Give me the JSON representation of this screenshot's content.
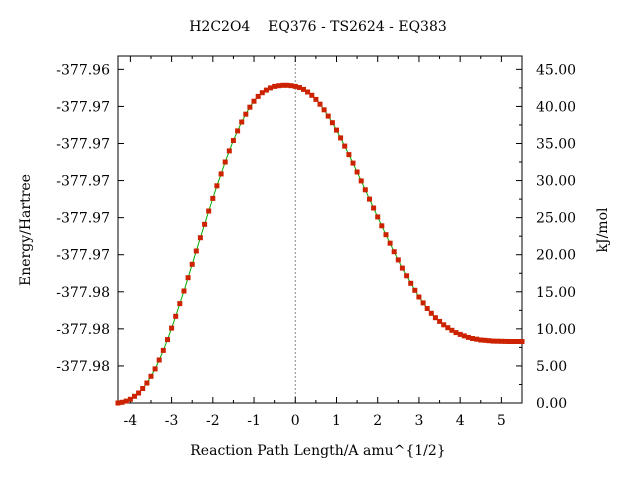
{
  "chart_data": {
    "type": "line",
    "title": "H2C2O4    EQ376 - TS2624 - EQ383",
    "xlabel": "Reaction Path Length/A amu^{1/2}",
    "ylabel_left": "Energy/Hartree",
    "ylabel_right": "kJ/mol",
    "xlim": [
      -4.3,
      5.5
    ],
    "ylim_right": [
      0.0,
      46.8
    ],
    "x_ticks": [
      -4,
      -3,
      -2,
      -1,
      0,
      1,
      2,
      3,
      4,
      5
    ],
    "x_tick_labels": [
      "-4",
      "-3",
      "-2",
      "-1",
      "0",
      "1",
      "2",
      "3",
      "4",
      "5"
    ],
    "left_tick_values_kjmol": [
      5.0,
      10.0,
      15.0,
      20.0,
      25.0,
      30.0,
      35.0,
      40.0,
      45.0
    ],
    "left_tick_labels": [
      "-377.98",
      "-377.98",
      "-377.98",
      "-377.97",
      "-377.97",
      "-377.97",
      "-377.97",
      "-377.97",
      "-377.96"
    ],
    "right_ticks": [
      0.0,
      5.0,
      10.0,
      15.0,
      20.0,
      25.0,
      30.0,
      35.0,
      40.0,
      45.0
    ],
    "right_tick_labels": [
      "0.00",
      "5.00",
      "10.00",
      "15.00",
      "20.00",
      "25.00",
      "30.00",
      "35.00",
      "40.00",
      "45.00"
    ],
    "ts_marker_x": 0,
    "grid": false,
    "line_color": "#00aa00",
    "marker_color": "#cc2200",
    "series": [
      {
        "x": [
          -4.3,
          -4.2,
          -4.1,
          -4.0,
          -3.9,
          -3.8,
          -3.7,
          -3.6,
          -3.5,
          -3.4,
          -3.3,
          -3.2,
          -3.1,
          -3.0,
          -2.9,
          -2.8,
          -2.7,
          -2.6,
          -2.5,
          -2.4,
          -2.3,
          -2.2,
          -2.1,
          -2.0,
          -1.9,
          -1.8,
          -1.7,
          -1.6,
          -1.5,
          -1.4,
          -1.3,
          -1.2,
          -1.1,
          -1.0,
          -0.9,
          -0.8,
          -0.7,
          -0.6,
          -0.5,
          -0.4,
          -0.3,
          -0.2,
          -0.1,
          0.0,
          0.1,
          0.2,
          0.3,
          0.4,
          0.5,
          0.6,
          0.7,
          0.8,
          0.9,
          1.0,
          1.1,
          1.2,
          1.3,
          1.4,
          1.5,
          1.6,
          1.7,
          1.8,
          1.9,
          2.0,
          2.1,
          2.2,
          2.3,
          2.4,
          2.5,
          2.6,
          2.7,
          2.8,
          2.9,
          3.0,
          3.1,
          3.2,
          3.3,
          3.4,
          3.5,
          3.6,
          3.7,
          3.8,
          3.9,
          4.0,
          4.1,
          4.2,
          4.3,
          4.4,
          4.5,
          4.6,
          4.7,
          4.8,
          4.9,
          5.0,
          5.1,
          5.2,
          5.3,
          5.4,
          5.5
        ],
        "y": [
          0.0,
          0.1,
          0.25,
          0.5,
          0.9,
          1.35,
          1.95,
          2.7,
          3.6,
          4.6,
          5.8,
          7.1,
          8.55,
          10.1,
          11.7,
          13.4,
          15.1,
          16.9,
          18.7,
          20.5,
          22.3,
          24.1,
          25.9,
          27.6,
          29.3,
          30.9,
          32.5,
          34.0,
          35.4,
          36.7,
          37.9,
          38.95,
          39.9,
          40.7,
          41.35,
          41.85,
          42.2,
          42.5,
          42.7,
          42.8,
          42.85,
          42.85,
          42.8,
          42.7,
          42.55,
          42.3,
          41.95,
          41.5,
          40.95,
          40.3,
          39.55,
          38.7,
          37.8,
          36.8,
          35.75,
          34.65,
          33.5,
          32.35,
          31.15,
          29.95,
          28.75,
          27.5,
          26.3,
          25.1,
          23.9,
          22.7,
          21.55,
          20.4,
          19.3,
          18.2,
          17.15,
          16.15,
          15.2,
          14.3,
          13.5,
          12.75,
          12.1,
          11.5,
          11.0,
          10.55,
          10.15,
          9.8,
          9.5,
          9.25,
          9.05,
          8.85,
          8.7,
          8.6,
          8.5,
          8.45,
          8.4,
          8.35,
          8.33,
          8.32,
          8.31,
          8.3,
          8.3,
          8.3,
          8.3
        ]
      }
    ]
  }
}
